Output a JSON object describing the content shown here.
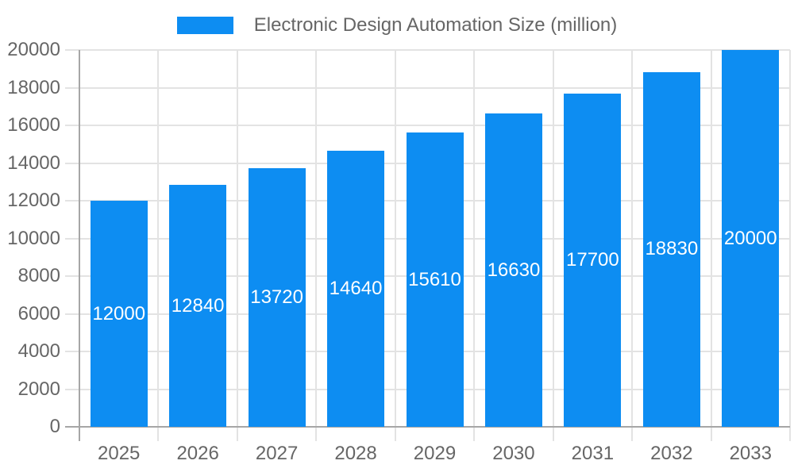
{
  "legend": {
    "label": "Electronic Design Automation Size (million)"
  },
  "chart_data": {
    "type": "bar",
    "title": "Electronic Design Automation Size (million)",
    "series_name": "Electronic Design Automation Size (million)",
    "categories": [
      "2025",
      "2026",
      "2027",
      "2028",
      "2029",
      "2030",
      "2031",
      "2032",
      "2033"
    ],
    "values": [
      12000,
      12840,
      13720,
      14640,
      15610,
      16630,
      17700,
      18830,
      20000
    ],
    "data_labels": [
      "12000",
      "12840",
      "13720",
      "14640",
      "15610",
      "16630",
      "17700",
      "18830",
      "20000"
    ],
    "xlabel": "",
    "ylabel": "",
    "ylim": [
      0,
      20000
    ],
    "y_tick_step": 2000,
    "y_ticks": [
      0,
      2000,
      4000,
      6000,
      8000,
      10000,
      12000,
      14000,
      16000,
      18000,
      20000
    ],
    "grid": true,
    "legend_position": "top",
    "data_label_position": "center-of-bar"
  },
  "colors": {
    "bar": "#0d8df2",
    "grid": "#e3e3e3",
    "axis": "#a6a6a6",
    "tick_text": "#666666",
    "data_label_text": "#ffffff",
    "background": "#ffffff"
  }
}
